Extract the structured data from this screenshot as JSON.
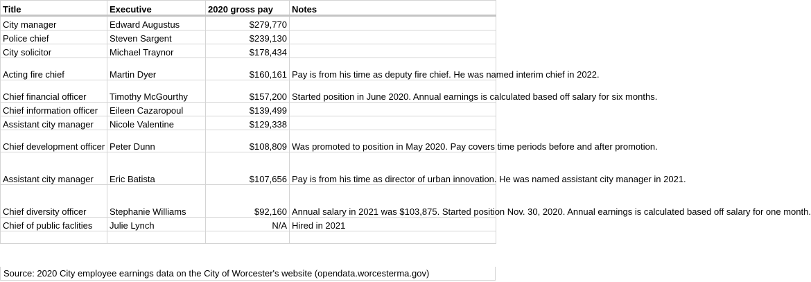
{
  "headers": {
    "title": "Title",
    "executive": "Executive",
    "pay": "2020 gross pay",
    "notes": "Notes"
  },
  "rows": [
    {
      "title": "City manager",
      "executive": "Edward Augustus",
      "pay": "$279,770",
      "notes": ""
    },
    {
      "title": "Police chief",
      "executive": "Steven Sargent",
      "pay": "$239,130",
      "notes": ""
    },
    {
      "title": "City solicitor",
      "executive": "Michael Traynor",
      "pay": "$178,434",
      "notes": ""
    },
    {
      "title": "Acting fire chief",
      "executive": "Martin Dyer",
      "pay": "$160,161",
      "notes": "Pay is from his time as deputy fire chief. He was named interim chief in 2022."
    },
    {
      "title": "Chief financial officer",
      "executive": "Timothy McGourthy",
      "pay": "$157,200",
      "notes": "Started position in June 2020. Annual earnings is calculated based off salary for six months."
    },
    {
      "title": "Chief information officer",
      "executive": "Eileen Cazaropoul",
      "pay": "$139,499",
      "notes": ""
    },
    {
      "title": "Assistant city manager",
      "executive": "Nicole Valentine",
      "pay": "$129,338",
      "notes": ""
    },
    {
      "title": "Chief development officer",
      "executive": "Peter Dunn",
      "pay": "$108,809",
      "notes": "Was promoted to position in May 2020. Pay covers time periods before and after promotion."
    },
    {
      "title": "Assistant city manager",
      "executive": "Eric Batista",
      "pay": "$107,656",
      "notes": "Pay is from his time as director of urban innovation. He was named assistant city manager in 2021."
    },
    {
      "title": "Chief diversity officer",
      "executive": "Stephanie Williams",
      "pay": "$92,160",
      "notes": "Annual salary in 2021 was $103,875. Started position Nov. 30, 2020. Annual earnings is calculated based off salary for one month."
    },
    {
      "title": "Chief of public faclities",
      "executive": "Julie Lynch",
      "pay": "N/A",
      "notes": "Hired in 2021"
    }
  ],
  "source": "Source: 2020 City employee earnings data on the City of Worcester's website (opendata.worcesterma.gov)"
}
